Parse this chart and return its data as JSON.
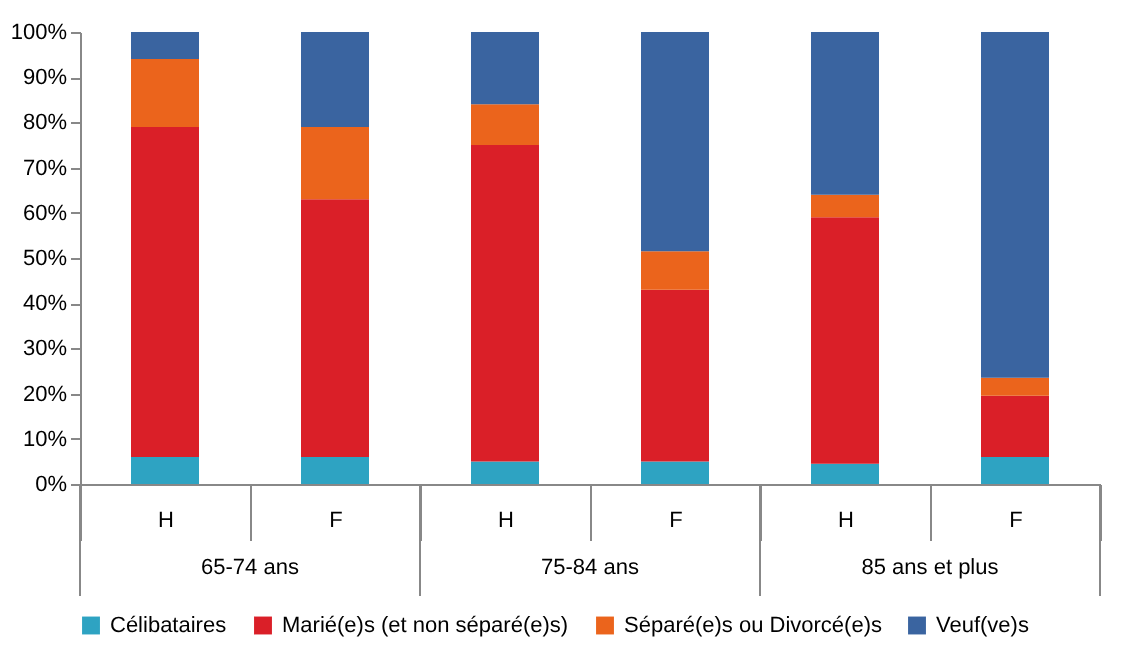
{
  "chart_data": {
    "type": "bar",
    "stacked": true,
    "categories": [
      "H",
      "F",
      "H",
      "F",
      "H",
      "F"
    ],
    "annotations": [
      "65-74 ans",
      "75-84 ans",
      "85 ans et plus"
    ],
    "series": [
      {
        "name": "Célibataires",
        "color": "#2ea3c2",
        "values": [
          6,
          6,
          5,
          5,
          4.5,
          6
        ]
      },
      {
        "name": "Marié(e)s (et non séparé(e)s)",
        "color": "#da1f28",
        "values": [
          73,
          57,
          70,
          38,
          54.5,
          13.5
        ]
      },
      {
        "name": "Séparé(e)s ou Divorcé(e)s",
        "color": "#eb641c",
        "values": [
          15,
          16,
          9,
          8.5,
          5,
          4
        ]
      },
      {
        "name": "Veuf(ve)s",
        "color": "#3a64a0",
        "values": [
          6,
          21,
          16,
          48.5,
          36,
          76.5
        ]
      }
    ],
    "ylim": [
      0,
      100
    ],
    "yticks": [
      {
        "value": 0,
        "label": "0%"
      },
      {
        "value": 10,
        "label": "10%"
      },
      {
        "value": 20,
        "label": "20%"
      },
      {
        "value": 30,
        "label": "30%"
      },
      {
        "value": 40,
        "label": "40%"
      },
      {
        "value": 50,
        "label": "50%"
      },
      {
        "value": 60,
        "label": "60%"
      },
      {
        "value": 70,
        "label": "70%"
      },
      {
        "value": 80,
        "label": "80%"
      },
      {
        "value": 90,
        "label": "90%"
      },
      {
        "value": 100,
        "label": "100%"
      }
    ],
    "grid": false,
    "legend": "bottom"
  }
}
